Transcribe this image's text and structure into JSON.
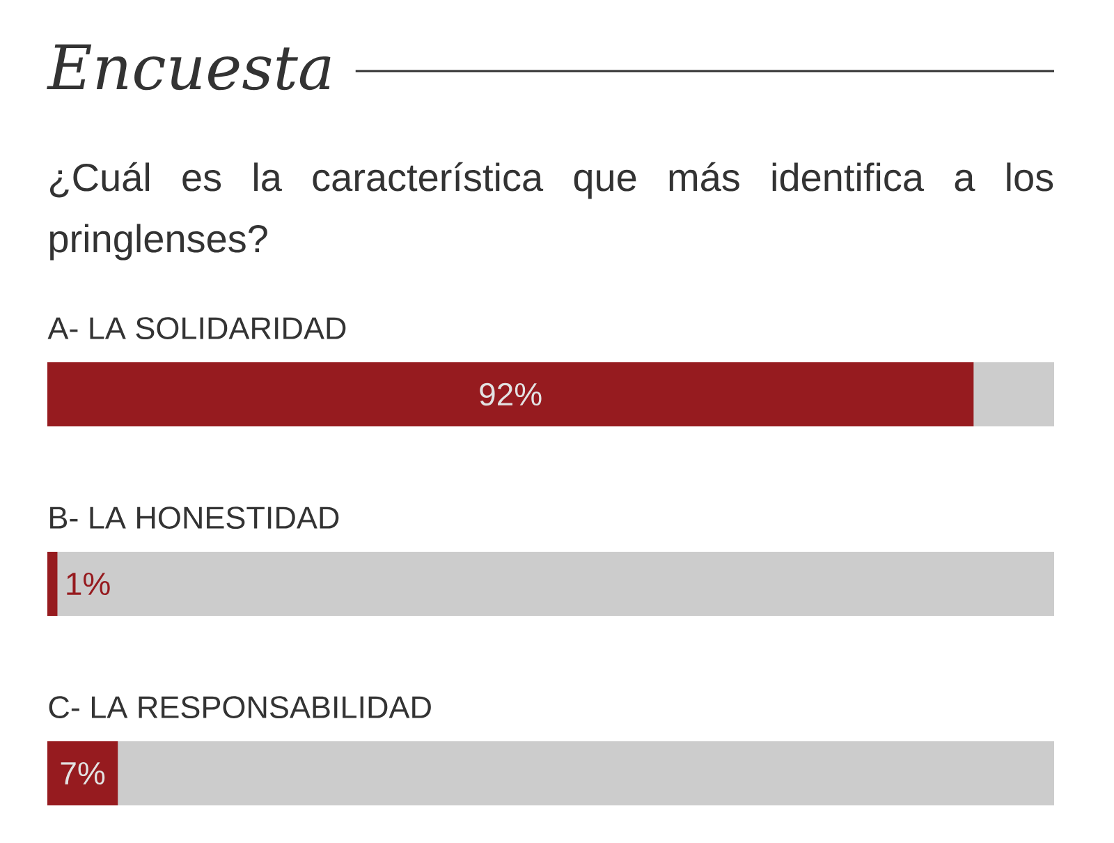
{
  "chart_data": {
    "type": "bar",
    "orientation": "horizontal",
    "title": "Encuesta",
    "subtitle": "¿Cuál es la característica que más identifica a los pringlenses?",
    "categories": [
      "A- LA SOLIDARIDAD",
      "B- LA HONESTIDAD",
      "C- LA RESPONSABILIDAD"
    ],
    "values": [
      92,
      1,
      7
    ],
    "value_labels": [
      "92%",
      "1%",
      "7%"
    ],
    "color": "#961b1f",
    "xlim": [
      0,
      100
    ],
    "tick_labels": "y"
  }
}
